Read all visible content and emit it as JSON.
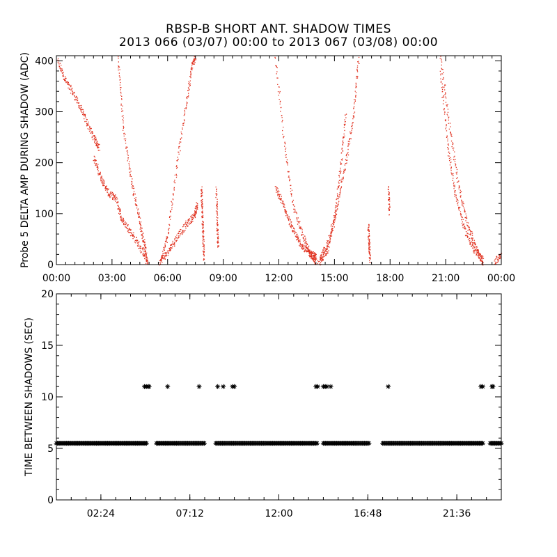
{
  "header": {
    "title": "RBSP-B SHORT ANT. SHADOW TIMES",
    "subtitle": "2013 066 (03/07) 00:00 to 2013 067 (03/08) 00:00"
  },
  "colors": {
    "top_series": "#e0301e",
    "bottom_series": "#000000"
  },
  "chart_data": [
    {
      "type": "scatter",
      "ylabel": "Probe 5 DELTA AMP DURING SHADOW (ADC)",
      "xlim_hours": [
        0,
        24
      ],
      "ylim": [
        0,
        410
      ],
      "x_ticks": [
        "00:00",
        "03:00",
        "06:00",
        "09:00",
        "12:00",
        "15:00",
        "18:00",
        "21:00",
        "00:00"
      ],
      "y_ticks": [
        "0",
        "100",
        "200",
        "300",
        "400"
      ],
      "series": [
        {
          "segments": [
            {
              "x": [
                0.05,
                0.5,
                1.0,
                1.5,
                2.0,
                2.3
              ],
              "y": [
                400,
                360,
                330,
                290,
                250,
                230
              ]
            },
            {
              "x": [
                2.0,
                2.4,
                2.8,
                3.2,
                3.5,
                4.0,
                4.5,
                4.9
              ],
              "y": [
                210,
                170,
                140,
                130,
                90,
                65,
                35,
                5
              ]
            },
            {
              "x": [
                3.3,
                3.6,
                4.0,
                4.4,
                4.7,
                4.9
              ],
              "y": [
                410,
                270,
                170,
                100,
                45,
                5
              ]
            },
            {
              "x": [
                5.5,
                6.0,
                6.5,
                7.0,
                7.4,
                7.6
              ],
              "y": [
                5,
                25,
                55,
                80,
                95,
                120
              ]
            },
            {
              "x": [
                5.6,
                6.0,
                6.5,
                7.0,
                7.3,
                7.5
              ],
              "y": [
                5,
                60,
                200,
                320,
                390,
                410
              ]
            },
            {
              "x": [
                7.8,
                7.85,
                7.9,
                7.95
              ],
              "y": [
                150,
                100,
                50,
                5
              ]
            },
            {
              "x": [
                8.6,
                8.65,
                8.7
              ],
              "y": [
                150,
                80,
                35
              ]
            },
            {
              "x": [
                11.8,
                12.2,
                12.6,
                13.0,
                13.4,
                13.8,
                14.0
              ],
              "y": [
                150,
                120,
                80,
                50,
                30,
                20,
                15
              ]
            },
            {
              "x": [
                11.8,
                12.3,
                12.8,
                13.3,
                13.7,
                14.0
              ],
              "y": [
                410,
                230,
                110,
                55,
                20,
                5
              ]
            },
            {
              "x": [
                14.1,
                14.6,
                15.1,
                15.6,
                16.0,
                16.3
              ],
              "y": [
                5,
                40,
                110,
                200,
                290,
                410
              ]
            },
            {
              "x": [
                14.2,
                14.6,
                15.0,
                15.3,
                15.6
              ],
              "y": [
                5,
                30,
                90,
                190,
                300
              ]
            },
            {
              "x": [
                16.8,
                16.85,
                16.9
              ],
              "y": [
                80,
                40,
                10
              ]
            },
            {
              "x": [
                17.9,
                17.95
              ],
              "y": [
                150,
                100
              ]
            },
            {
              "x": [
                20.7,
                21.2,
                21.7,
                22.2,
                22.7,
                23.0
              ],
              "y": [
                410,
                270,
                150,
                75,
                25,
                5
              ]
            },
            {
              "x": [
                20.7,
                21.1,
                21.5,
                22.0,
                22.5,
                23.0
              ],
              "y": [
                380,
                230,
                140,
                70,
                30,
                10
              ]
            },
            {
              "x": [
                23.6,
                24.0
              ],
              "y": [
                5,
                20
              ]
            }
          ]
        }
      ]
    },
    {
      "type": "scatter",
      "ylabel": "TIME BETWEEN SHADOWS (SEC)",
      "xlim_hours": [
        0,
        24
      ],
      "ylim": [
        0,
        20
      ],
      "x_ticks": [
        "02:24",
        "07:12",
        "12:00",
        "16:48",
        "21:36"
      ],
      "y_ticks": [
        "0",
        "5",
        "10",
        "15",
        "20"
      ],
      "series": [
        {
          "baseline_value": 5.5,
          "baseline_ranges_hours": [
            [
              0.0,
              4.9
            ],
            [
              5.4,
              8.0
            ],
            [
              8.6,
              14.1
            ],
            [
              14.4,
              16.9
            ],
            [
              17.6,
              23.0
            ],
            [
              23.4,
              24.0
            ]
          ],
          "outlier_value": 11,
          "outlier_x_hours": [
            4.75,
            4.85,
            4.95,
            5.0,
            6.0,
            7.7,
            8.7,
            9.0,
            9.5,
            9.6,
            14.0,
            14.1,
            14.4,
            14.5,
            14.6,
            14.8,
            17.9,
            22.9,
            23.0,
            23.5,
            23.55
          ]
        }
      ]
    }
  ]
}
